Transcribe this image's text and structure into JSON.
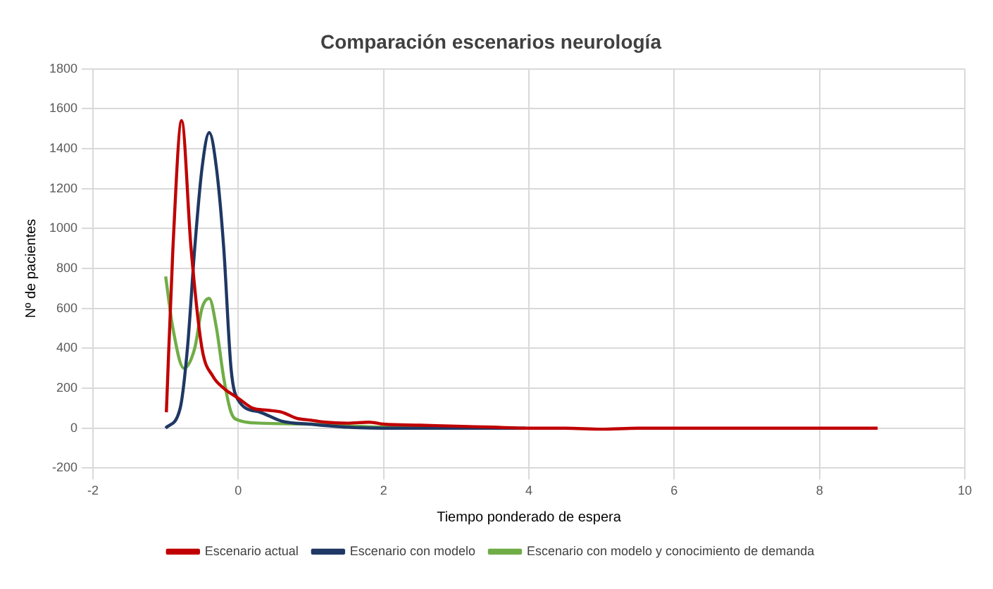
{
  "chart_data": {
    "type": "line",
    "title": "Comparación escenarios neurología",
    "xlabel": "Tiempo ponderado de espera",
    "ylabel": "Nº de pacientes",
    "xlim": [
      -2,
      10
    ],
    "xticks": [
      -2,
      0,
      2,
      4,
      6,
      8,
      10
    ],
    "ylim": [
      -200,
      1800
    ],
    "yticks": [
      -200,
      0,
      200,
      400,
      600,
      800,
      1000,
      1200,
      1400,
      1600,
      1800
    ],
    "grid": true,
    "legend": "bottom",
    "marker": "none",
    "line_style": "solid",
    "series": [
      {
        "name": "Escenario actual",
        "color": "#c00000",
        "x": [
          -0.99,
          -0.9,
          -0.78,
          -0.65,
          -0.5,
          -0.35,
          -0.2,
          0,
          0.2,
          0.4,
          0.6,
          0.8,
          1,
          1.2,
          1.5,
          1.8,
          2,
          2.5,
          3,
          3.5,
          4,
          4.5,
          5,
          5.5,
          6,
          7,
          8,
          8.8
        ],
        "values": [
          80,
          900,
          1540,
          900,
          400,
          260,
          200,
          150,
          100,
          90,
          80,
          50,
          40,
          30,
          25,
          30,
          20,
          15,
          10,
          5,
          0,
          0,
          -5,
          0,
          0,
          0,
          0,
          0
        ]
      },
      {
        "name": "Escenario con modelo",
        "color": "#1f3864",
        "x": [
          -1,
          -0.8,
          -0.7,
          -0.6,
          -0.5,
          -0.4,
          -0.3,
          -0.2,
          -0.1,
          0,
          0.3,
          0.6,
          1,
          1.5,
          2,
          3,
          3.95
        ],
        "values": [
          0,
          100,
          400,
          900,
          1300,
          1480,
          1300,
          900,
          300,
          140,
          80,
          35,
          20,
          5,
          0,
          0,
          0
        ]
      },
      {
        "name": "Escenario con modelo y conocimiento de demanda",
        "color": "#70ad47",
        "x": [
          -1,
          -0.9,
          -0.75,
          -0.6,
          -0.5,
          -0.4,
          -0.3,
          -0.2,
          -0.1,
          0,
          0.3,
          1,
          2,
          3,
          3.8
        ],
        "values": [
          760,
          500,
          300,
          400,
          600,
          650,
          500,
          250,
          80,
          40,
          25,
          20,
          5,
          0,
          0
        ]
      }
    ]
  }
}
